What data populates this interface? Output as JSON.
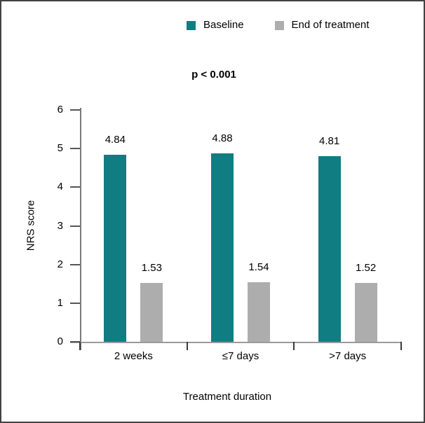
{
  "figure": {
    "background": "#ffffff",
    "frame_border_color": "#424242"
  },
  "chart_data": {
    "type": "bar",
    "annotation": "p < 0.001",
    "categories": [
      "2 weeks",
      "≤7 days",
      ">7 days"
    ],
    "series": [
      {
        "name": "Baseline",
        "color": "#0F7D82",
        "values": [
          4.84,
          4.88,
          4.81
        ],
        "labels": [
          "4.84",
          "4.88",
          "4.81"
        ]
      },
      {
        "name": "End of treatment",
        "color": "#ADADAD",
        "values": [
          1.53,
          1.54,
          1.52
        ],
        "labels": [
          "1.53",
          "1.54",
          "1.52"
        ]
      }
    ],
    "xlabel": "Treatment duration",
    "ylabel": "NRS score",
    "ylim": [
      0,
      6
    ],
    "yticks": [
      "0",
      "1",
      "2",
      "3",
      "4",
      "5",
      "6"
    ],
    "grid": false,
    "legend_position": "top-right"
  }
}
